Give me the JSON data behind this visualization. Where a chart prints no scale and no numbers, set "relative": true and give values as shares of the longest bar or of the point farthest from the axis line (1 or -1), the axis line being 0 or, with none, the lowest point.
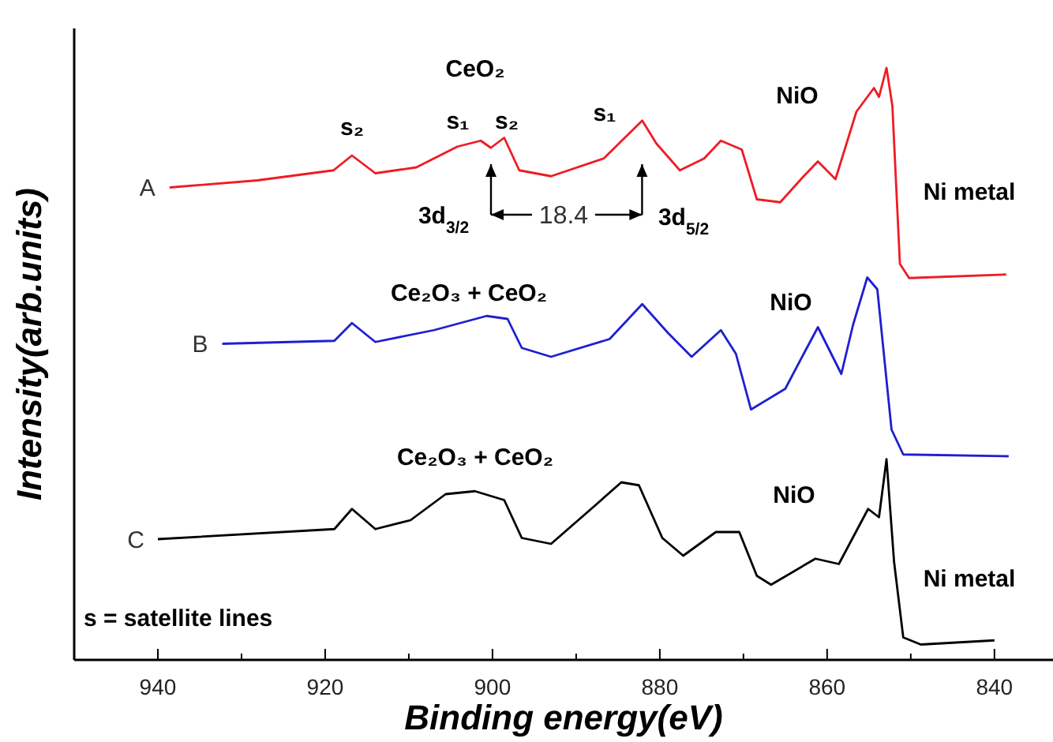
{
  "chart_data": {
    "type": "line",
    "relative": true,
    "xlabel": "Binding energy(eV)",
    "ylabel": "Intensity(arb.units)",
    "xlim": [
      950,
      833
    ],
    "xticks": [
      940,
      {
        "value": 930,
        "label": null
      },
      920,
      {
        "value": 910,
        "label": null
      },
      900,
      {
        "value": 890,
        "label": null
      },
      880,
      {
        "value": 870,
        "label": null
      },
      860,
      {
        "value": 850,
        "label": null
      },
      840
    ],
    "line_style": "solid",
    "marker": "none",
    "legend": false,
    "series": [
      {
        "name": "A",
        "color": "#ee1c24",
        "x": [
          938.6,
          928.1,
          919,
          916.8,
          914,
          909.1,
          904.2,
          901.4,
          900.2,
          898.6,
          896.8,
          893,
          886.7,
          883.9,
          882.1,
          880.4,
          877.6,
          874.7,
          872.7,
          870.2,
          868.4,
          865.6,
          862.8,
          861.1,
          859,
          856.5,
          854.4,
          853.8,
          852.9,
          852.2,
          851.3,
          850.2,
          838.6
        ],
        "values": [
          0.798,
          0.81,
          0.827,
          0.852,
          0.822,
          0.832,
          0.867,
          0.877,
          0.865,
          0.882,
          0.827,
          0.817,
          0.847,
          0.886,
          0.911,
          0.872,
          0.827,
          0.847,
          0.877,
          0.862,
          0.778,
          0.773,
          0.817,
          0.842,
          0.812,
          0.926,
          0.966,
          0.951,
          1.0,
          0.936,
          0.669,
          0.645,
          0.651
        ]
      },
      {
        "name": "B",
        "color": "#1f1fd0",
        "x": [
          932.3,
          918.9,
          916.8,
          914,
          907,
          900.7,
          898.2,
          896.5,
          893,
          886,
          882.1,
          879,
          876.2,
          872.7,
          870.9,
          869.1,
          865,
          862.8,
          861.1,
          858.3,
          856.9,
          855.2,
          854,
          852.3,
          850.9,
          838.3
        ],
        "values": [
          0.534,
          0.539,
          0.569,
          0.537,
          0.557,
          0.581,
          0.576,
          0.527,
          0.512,
          0.542,
          0.601,
          0.552,
          0.512,
          0.557,
          0.517,
          0.423,
          0.458,
          0.517,
          0.562,
          0.483,
          0.566,
          0.646,
          0.626,
          0.389,
          0.347,
          0.344
        ]
      },
      {
        "name": "C",
        "color": "#000000",
        "x": [
          940,
          918.9,
          916.8,
          914,
          909.8,
          905.6,
          902.1,
          898.6,
          896.5,
          893,
          887.4,
          884.6,
          882.5,
          879.7,
          877.2,
          873.3,
          870.5,
          868.4,
          866.7,
          861.4,
          858.6,
          855.1,
          853.8,
          852.9,
          852,
          850.9,
          848.8,
          840
        ],
        "values": [
          0.204,
          0.221,
          0.255,
          0.221,
          0.236,
          0.28,
          0.285,
          0.27,
          0.206,
          0.196,
          0.265,
          0.3,
          0.295,
          0.206,
          0.176,
          0.216,
          0.216,
          0.142,
          0.127,
          0.171,
          0.162,
          0.255,
          0.241,
          0.339,
          0.166,
          0.038,
          0.026,
          0.033
        ]
      }
    ],
    "annotations": [
      "CeO₂",
      "s₂",
      "s₁",
      "s₂",
      "s₁",
      "3d$_{3/2}$",
      "18.4",
      "3d$_{5/2}$",
      "NiO",
      "Ni metal",
      "Ce₂O₃ + CeO₂",
      "NiO",
      "Ce₂O₃ + CeO₂",
      "NiO",
      "Ni metal",
      "s = satellite lines"
    ]
  }
}
